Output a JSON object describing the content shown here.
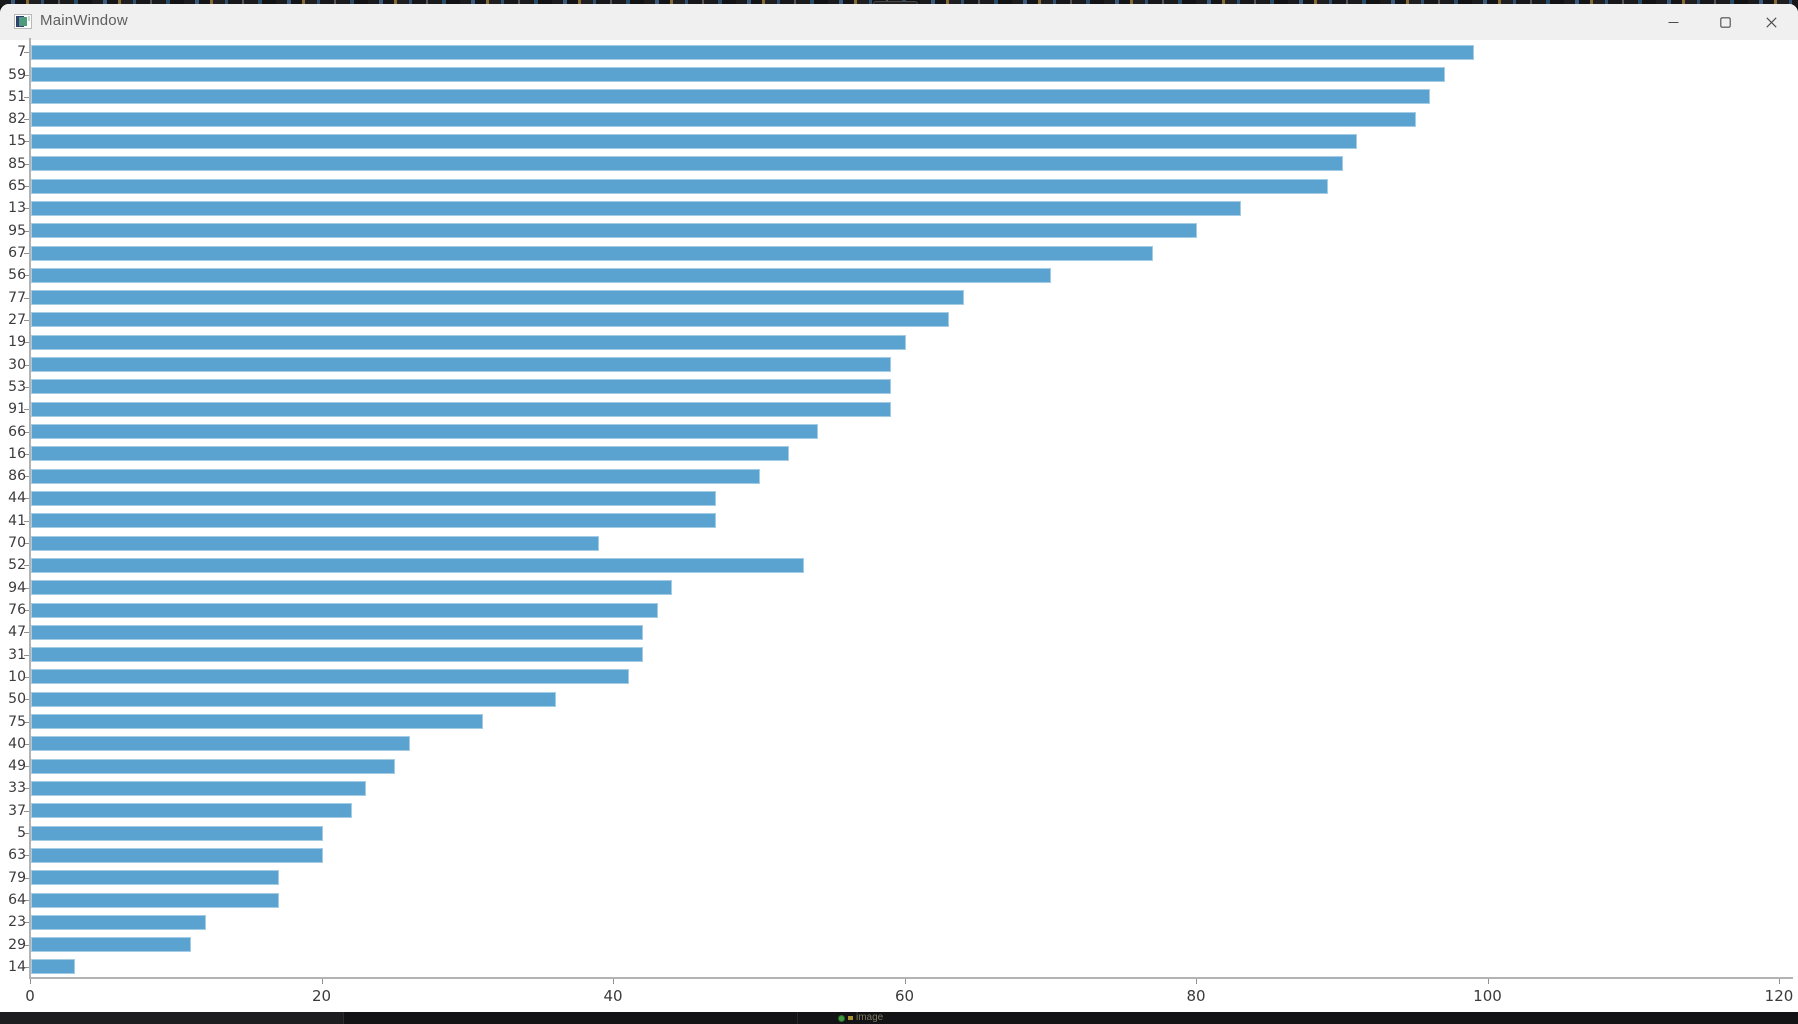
{
  "window": {
    "title": "MainWindow",
    "controls": {
      "minimize": "minimize",
      "maximize": "maximize",
      "close": "close"
    }
  },
  "chart_data": {
    "type": "bar",
    "orientation": "horizontal",
    "title": "",
    "xlabel": "",
    "ylabel": "",
    "categories": [
      "7",
      "59",
      "51",
      "82",
      "15",
      "85",
      "65",
      "13",
      "95",
      "67",
      "56",
      "77",
      "27",
      "19",
      "30",
      "53",
      "91",
      "66",
      "16",
      "86",
      "44",
      "41",
      "70",
      "52",
      "94",
      "76",
      "47",
      "31",
      "10",
      "50",
      "75",
      "40",
      "49",
      "33",
      "37",
      "5",
      "63",
      "79",
      "64",
      "23",
      "29",
      "14"
    ],
    "values": [
      99,
      97,
      96,
      95,
      91,
      90,
      89,
      83,
      80,
      77,
      70,
      64,
      63,
      60,
      59,
      59,
      59,
      54,
      52,
      50,
      47,
      47,
      39,
      53,
      44,
      43,
      42,
      42,
      41,
      36,
      31,
      26,
      25,
      23,
      22,
      20,
      20,
      17,
      17,
      12,
      11,
      3
    ],
    "x_ticks": [
      0,
      20,
      40,
      60,
      80,
      100,
      120
    ],
    "xlim": [
      0,
      120
    ],
    "grid": false,
    "legend": null,
    "bar_color": "#5aa2d0",
    "axis_color": "#b3b3b3",
    "tick_label_color": "#3b3b3b"
  },
  "taskbar": {
    "status_label": "image"
  }
}
